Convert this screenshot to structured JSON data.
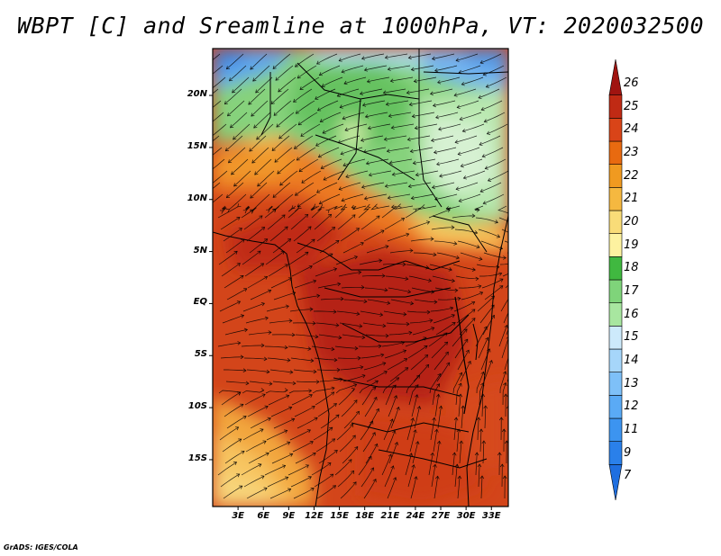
{
  "title": "WBPT [C] and Sreamline at 1000hPa, VT: 2020032500",
  "footer": "GrADS: IGES/COLA",
  "map": {
    "lat_labels": [
      "20N",
      "15N",
      "10N",
      "5N",
      "EQ",
      "5S",
      "10S",
      "15S"
    ],
    "lon_labels": [
      "3E",
      "6E",
      "9E",
      "12E",
      "15E",
      "18E",
      "21E",
      "24E",
      "27E",
      "30E",
      "33E"
    ],
    "lat_range": [
      -19.5,
      24.5
    ],
    "lon_range": [
      0,
      35
    ]
  },
  "colorbar": {
    "labels": [
      "7",
      "9",
      "11",
      "12",
      "13",
      "14",
      "15",
      "16",
      "17",
      "18",
      "19",
      "20",
      "21",
      "22",
      "23",
      "24",
      "25",
      "26"
    ],
    "colors": [
      "#1f6fe0",
      "#2a80ea",
      "#3c94f0",
      "#5aaaf5",
      "#7ec0f8",
      "#a6d6fa",
      "#cdeafb",
      "#a8e6a0",
      "#7fd47a",
      "#40b840",
      "#fdf2a0",
      "#f9dc78",
      "#f5b840",
      "#f09a20",
      "#e86a10",
      "#d94418",
      "#c02a14",
      "#a01410"
    ],
    "extend": "both"
  }
}
